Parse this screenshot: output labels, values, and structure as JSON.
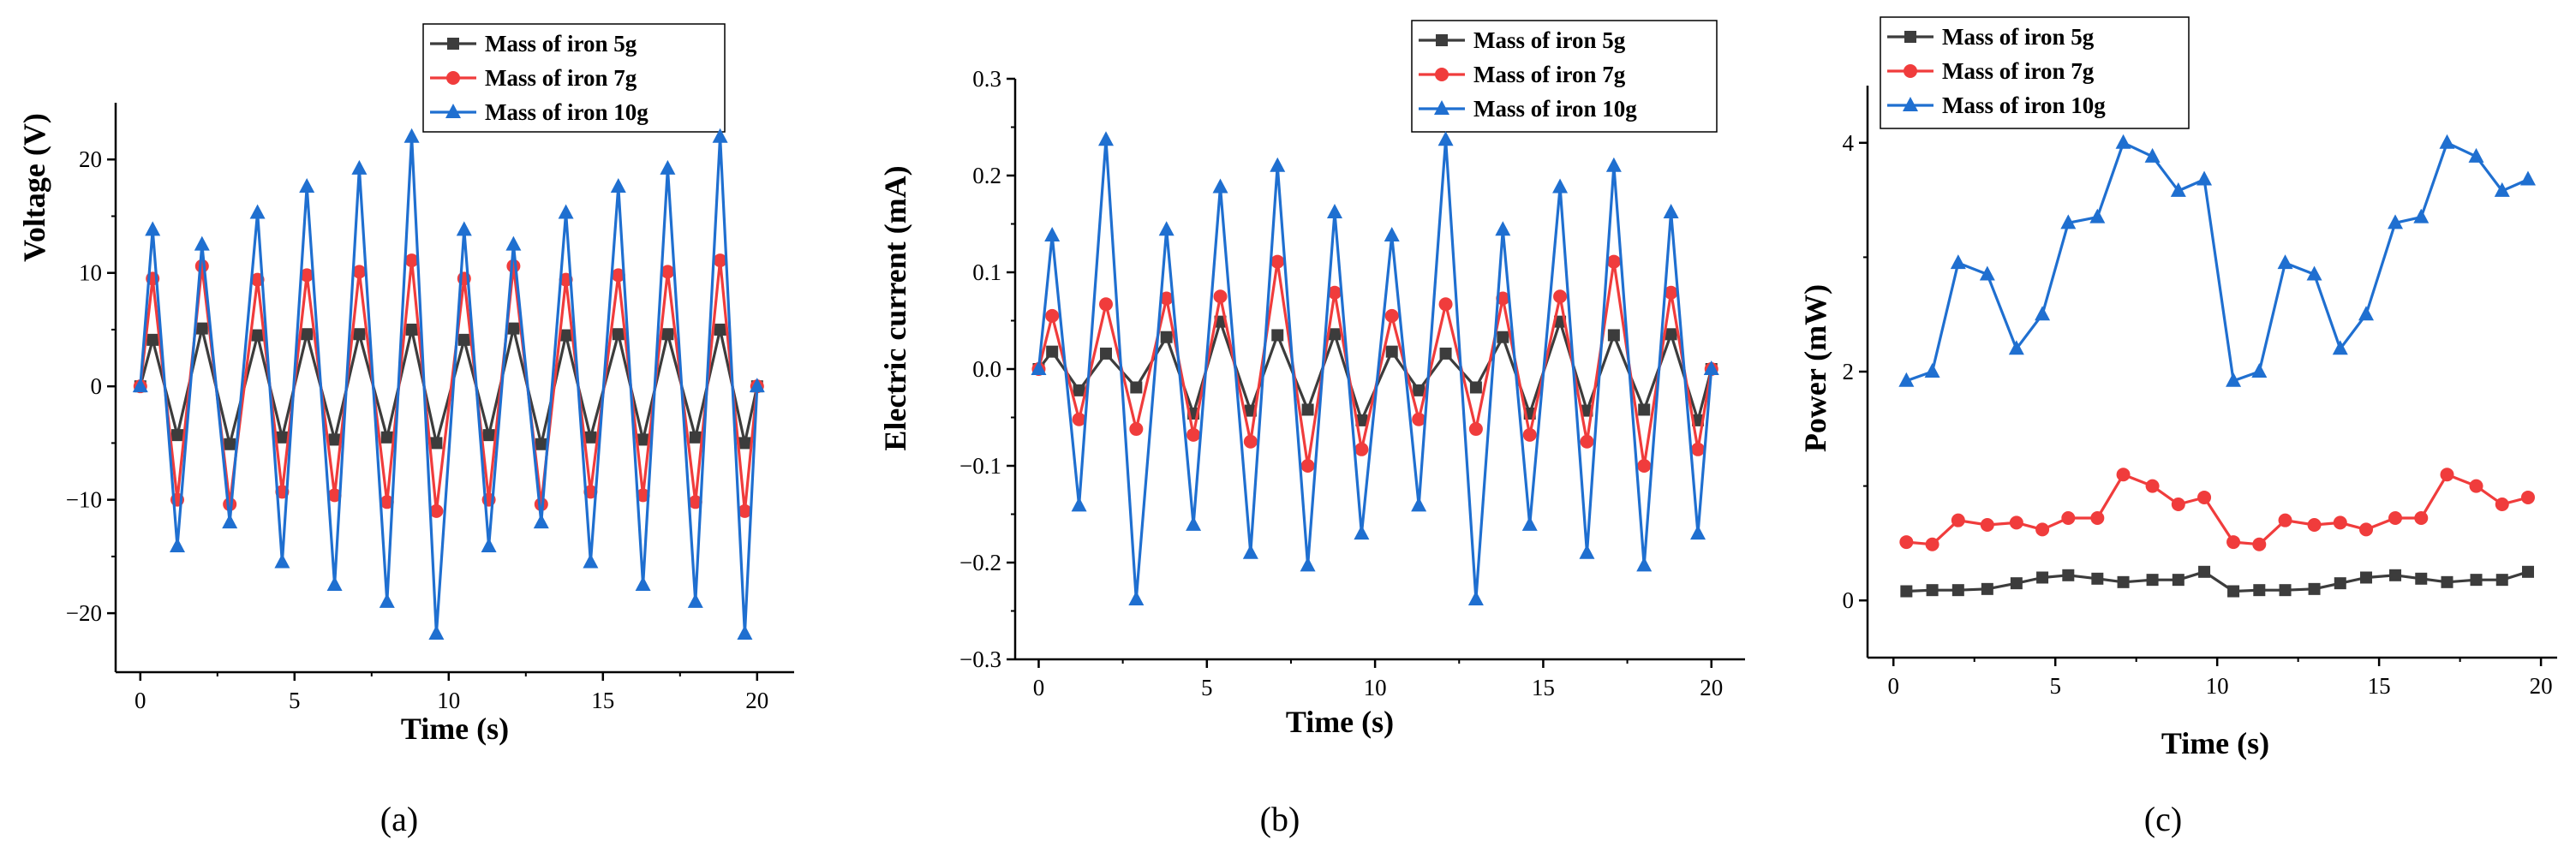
{
  "colors": {
    "series": [
      "#3c3c3c",
      "#f03c3c",
      "#1f6fd0"
    ]
  },
  "chart_data": [
    {
      "type": "line",
      "panel_label": "(a)",
      "xlabel": "Time (s)",
      "ylabel": "Voltage (V)",
      "xlim": [
        -0.8,
        21.2
      ],
      "ylim": [
        -25.2,
        25
      ],
      "xticks": [
        0,
        5,
        10,
        15,
        20
      ],
      "yticks": [
        -20,
        -10,
        0,
        10,
        20
      ],
      "xtick_labels": [
        "0",
        "5",
        "10",
        "15",
        "20"
      ],
      "ytick_labels": [
        "−20",
        "−10",
        "0",
        "10",
        "20"
      ],
      "legend": [
        "Mass of iron 5g",
        "Mass of iron 7g",
        "Mass of iron 10g"
      ],
      "legend_position": "top-right",
      "x": [
        0,
        0.4,
        1.2,
        2.0,
        2.9,
        3.8,
        4.6,
        5.4,
        6.3,
        7.1,
        8.0,
        8.8,
        9.6,
        10.5,
        11.3,
        12.1,
        13.0,
        13.8,
        14.6,
        15.5,
        16.3,
        17.1,
        18.0,
        18.8,
        19.6,
        20.0
      ],
      "series": [
        {
          "name": "Mass of iron 5g",
          "marker": "square",
          "values": [
            0,
            4.1,
            -4.3,
            5.1,
            -5.1,
            4.5,
            -4.5,
            4.6,
            -4.7,
            4.6,
            -4.5,
            5.0,
            -5.0,
            4.1,
            -4.3,
            5.1,
            -5.1,
            4.5,
            -4.5,
            4.6,
            -4.7,
            4.6,
            -4.5,
            5.0,
            -5.0,
            0
          ]
        },
        {
          "name": "Mass of iron 7g",
          "marker": "circle",
          "values": [
            0,
            9.5,
            -10.0,
            10.6,
            -10.4,
            9.4,
            -9.3,
            9.8,
            -9.6,
            10.1,
            -10.2,
            11.1,
            -11.0,
            9.5,
            -10.0,
            10.6,
            -10.4,
            9.4,
            -9.3,
            9.8,
            -9.6,
            10.1,
            -10.2,
            11.1,
            -11.0,
            0
          ]
        },
        {
          "name": "Mass of iron 10g",
          "marker": "triangle",
          "values": [
            0,
            13.8,
            -14.1,
            12.5,
            -12.0,
            15.3,
            -15.5,
            17.6,
            -17.5,
            19.2,
            -19.0,
            22.0,
            -21.8,
            13.8,
            -14.1,
            12.5,
            -12.0,
            15.3,
            -15.5,
            17.6,
            -17.5,
            19.2,
            -19.0,
            22.0,
            -21.8,
            0
          ]
        }
      ]
    },
    {
      "type": "line",
      "panel_label": "(b)",
      "xlabel": "Time (s)",
      "ylabel": "Electric current (mA)",
      "xlim": [
        -0.7,
        21.0
      ],
      "ylim": [
        -0.3,
        0.3
      ],
      "xticks": [
        0,
        5,
        10,
        15,
        20
      ],
      "yticks": [
        -0.3,
        -0.2,
        -0.1,
        0.0,
        0.1,
        0.2,
        0.3
      ],
      "xtick_labels": [
        "0",
        "5",
        "10",
        "15",
        "20"
      ],
      "ytick_labels": [
        "−0.3",
        "−0.2",
        "−0.1",
        "0.0",
        "0.1",
        "0.2",
        "0.3"
      ],
      "legend": [
        "Mass of iron 5g",
        "Mass of iron 7g",
        "Mass of iron 10g"
      ],
      "legend_position": "top-right",
      "x": [
        0,
        0.4,
        1.2,
        2.0,
        2.9,
        3.8,
        4.6,
        5.4,
        6.3,
        7.1,
        8.0,
        8.8,
        9.6,
        10.5,
        11.3,
        12.1,
        13.0,
        13.8,
        14.6,
        15.5,
        16.3,
        17.1,
        18.0,
        18.8,
        19.6,
        20.0
      ],
      "series": [
        {
          "name": "Mass of iron 5g",
          "marker": "square",
          "values": [
            0,
            0.018,
            -0.022,
            0.016,
            -0.019,
            0.033,
            -0.046,
            0.049,
            -0.043,
            0.035,
            -0.042,
            0.036,
            -0.053,
            0.018,
            -0.022,
            0.016,
            -0.019,
            0.033,
            -0.046,
            0.049,
            -0.043,
            0.035,
            -0.042,
            0.036,
            -0.053,
            0
          ]
        },
        {
          "name": "Mass of iron 7g",
          "marker": "circle",
          "values": [
            0,
            0.055,
            -0.052,
            0.067,
            -0.062,
            0.073,
            -0.068,
            0.075,
            -0.075,
            0.111,
            -0.1,
            0.079,
            -0.083,
            0.055,
            -0.052,
            0.067,
            -0.062,
            0.073,
            -0.068,
            0.075,
            -0.075,
            0.111,
            -0.1,
            0.079,
            -0.083,
            0
          ]
        },
        {
          "name": "Mass of iron 10g",
          "marker": "triangle",
          "values": [
            0,
            0.138,
            -0.141,
            0.237,
            -0.238,
            0.144,
            -0.161,
            0.188,
            -0.19,
            0.21,
            -0.203,
            0.162,
            -0.17,
            0.138,
            -0.141,
            0.237,
            -0.238,
            0.144,
            -0.161,
            0.188,
            -0.19,
            0.21,
            -0.203,
            0.162,
            -0.17,
            0
          ]
        }
      ]
    },
    {
      "type": "line",
      "panel_label": "(c)",
      "xlabel": "Time (s)",
      "ylabel": "Power (mW)",
      "xlim": [
        -0.8,
        20.5
      ],
      "ylim": [
        -0.5,
        4.5
      ],
      "xticks": [
        0,
        5,
        10,
        15,
        20
      ],
      "yticks": [
        0,
        2,
        4
      ],
      "xtick_labels": [
        "0",
        "5",
        "10",
        "15",
        "20"
      ],
      "ytick_labels": [
        "0",
        "2",
        "4"
      ],
      "legend": [
        "Mass of iron 5g",
        "Mass of iron 7g",
        "Mass of iron 10g"
      ],
      "legend_position": "top-left",
      "x": [
        0.4,
        1.2,
        2.0,
        2.9,
        3.8,
        4.6,
        5.4,
        6.3,
        7.1,
        8.0,
        8.8,
        9.6,
        10.5,
        11.3,
        12.1,
        13.0,
        13.8,
        14.6,
        15.5,
        16.3,
        17.1,
        18.0,
        18.8,
        19.6
      ],
      "series": [
        {
          "name": "Mass of iron 5g",
          "marker": "square",
          "values": [
            0.08,
            0.09,
            0.09,
            0.1,
            0.15,
            0.2,
            0.22,
            0.19,
            0.16,
            0.18,
            0.18,
            0.25,
            0.08,
            0.09,
            0.09,
            0.1,
            0.15,
            0.2,
            0.22,
            0.19,
            0.16,
            0.18,
            0.18,
            0.25
          ]
        },
        {
          "name": "Mass of iron 7g",
          "marker": "circle",
          "values": [
            0.51,
            0.49,
            0.7,
            0.66,
            0.68,
            0.62,
            0.72,
            0.72,
            1.1,
            1.0,
            0.84,
            0.9,
            0.51,
            0.49,
            0.7,
            0.66,
            0.68,
            0.62,
            0.72,
            0.72,
            1.1,
            1.0,
            0.84,
            0.9
          ]
        },
        {
          "name": "Mass of iron 10g",
          "marker": "triangle",
          "values": [
            1.92,
            2.0,
            2.95,
            2.85,
            2.2,
            2.5,
            3.3,
            3.35,
            4.0,
            3.88,
            3.58,
            3.68,
            1.92,
            2.0,
            2.95,
            2.85,
            2.2,
            2.5,
            3.3,
            3.35,
            4.0,
            3.88,
            3.58,
            3.68
          ]
        }
      ]
    }
  ]
}
